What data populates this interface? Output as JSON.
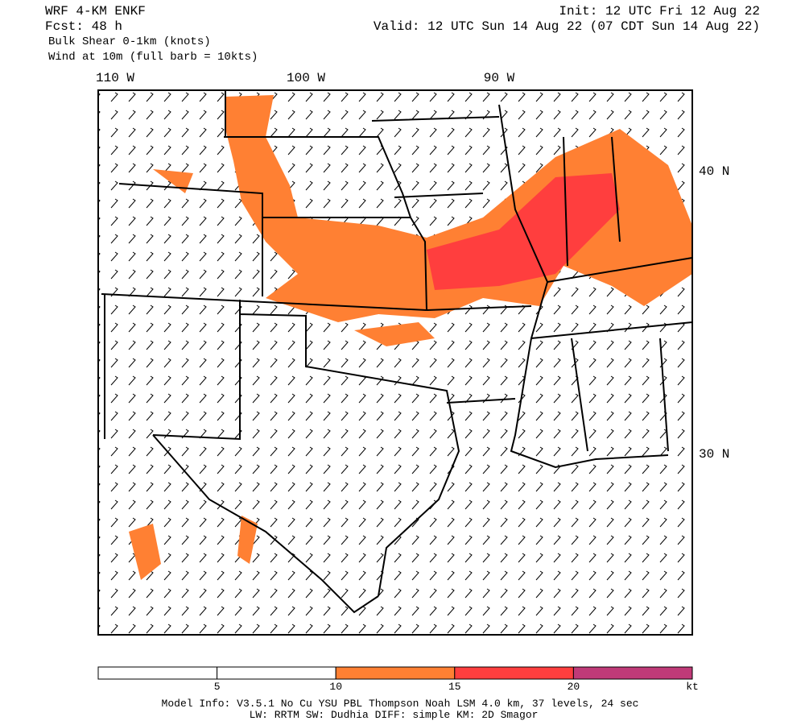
{
  "header": {
    "left": [
      "WRF 4-KM ENKF",
      "Fcst:   48 h",
      "Bulk Shear 0-1km (knots)",
      "Wind at 10m (full barb = 10kts)"
    ],
    "init": "Init: 12 UTC Fri 12 Aug 22",
    "valid": "Valid: 12 UTC Sun 14 Aug 22 (07 CDT Sun 14 Aug 22)"
  },
  "map": {
    "lon_labels": [
      "110 W",
      "100 W",
      "90 W"
    ],
    "lat_labels": [
      "40 N",
      "30 N"
    ]
  },
  "colorbar": {
    "ticks": [
      5,
      10,
      15,
      20
    ],
    "unit": "kt",
    "colors": [
      "#ffffff",
      "#ffffff",
      "#ff8033",
      "#ff3e3e",
      "#c03a78"
    ]
  },
  "footer": [
    "Model Info: V3.5.1    No Cu    YSU PBL   Thompson     Noah LSM  4.0 km,  37 levels,    24 sec",
    "LW: RRTM SW: Dudhia  DIFF: simple KM: 2D Smagor"
  ]
}
